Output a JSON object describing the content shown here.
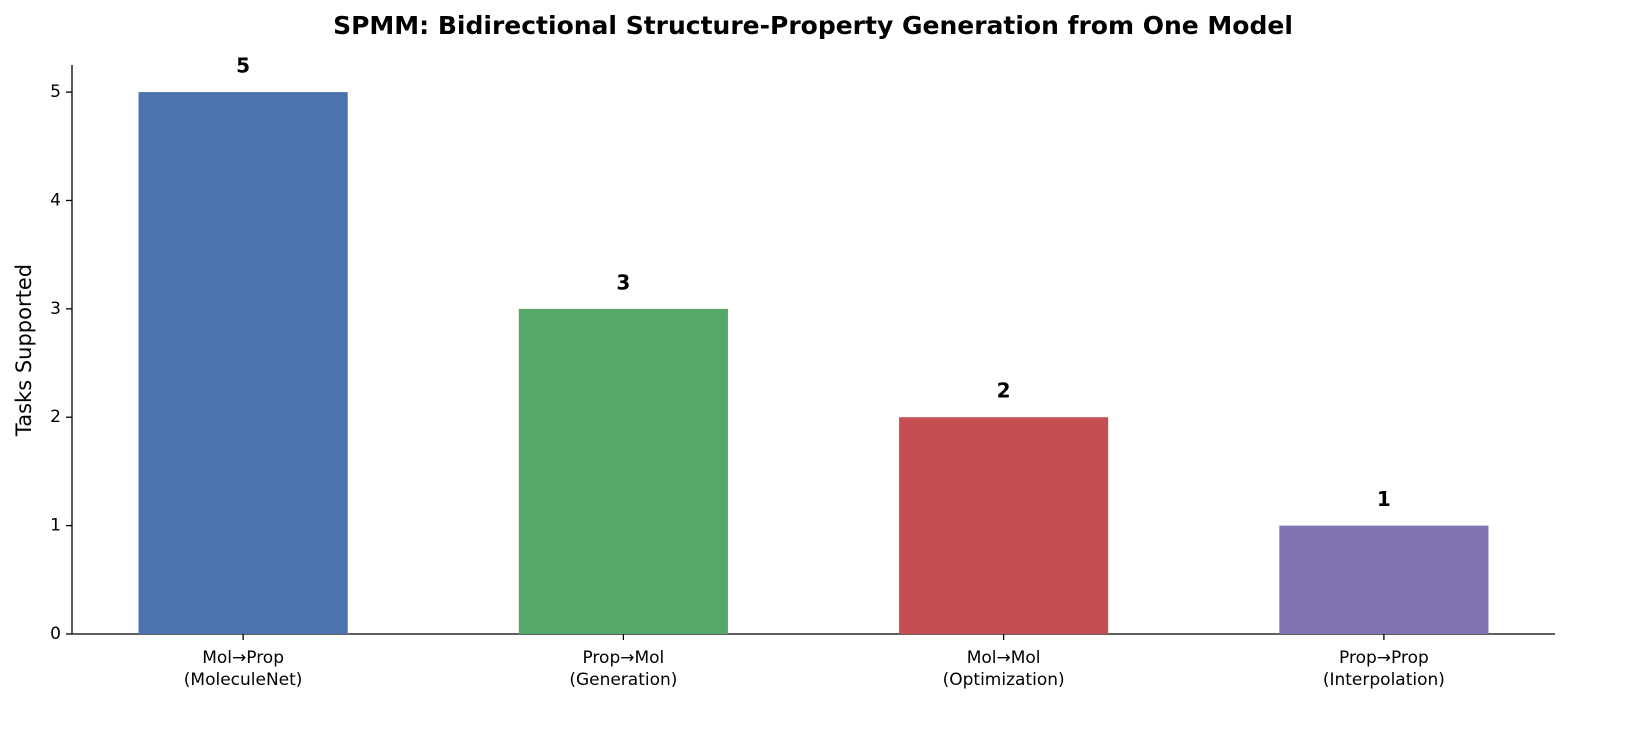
{
  "chart_data": {
    "type": "bar",
    "title": "SPMM: Bidirectional Structure-Property Generation from One Model",
    "y_label": "Tasks Supported",
    "categories": [
      "Mol→Prop\n(MoleculeNet)",
      "Prop→Mol\n(Generation)",
      "Mol→Mol\n(Optimization)",
      "Prop→Prop\n(Interpolation)"
    ],
    "values": [
      5,
      3,
      2,
      1
    ],
    "colors": [
      "#4c72b0",
      "#55a868",
      "#c44e52",
      "#8172b2"
    ],
    "ylim": [
      0,
      5.25
    ],
    "yticks": [
      0,
      1,
      2,
      3,
      4,
      5
    ],
    "grid": false
  }
}
